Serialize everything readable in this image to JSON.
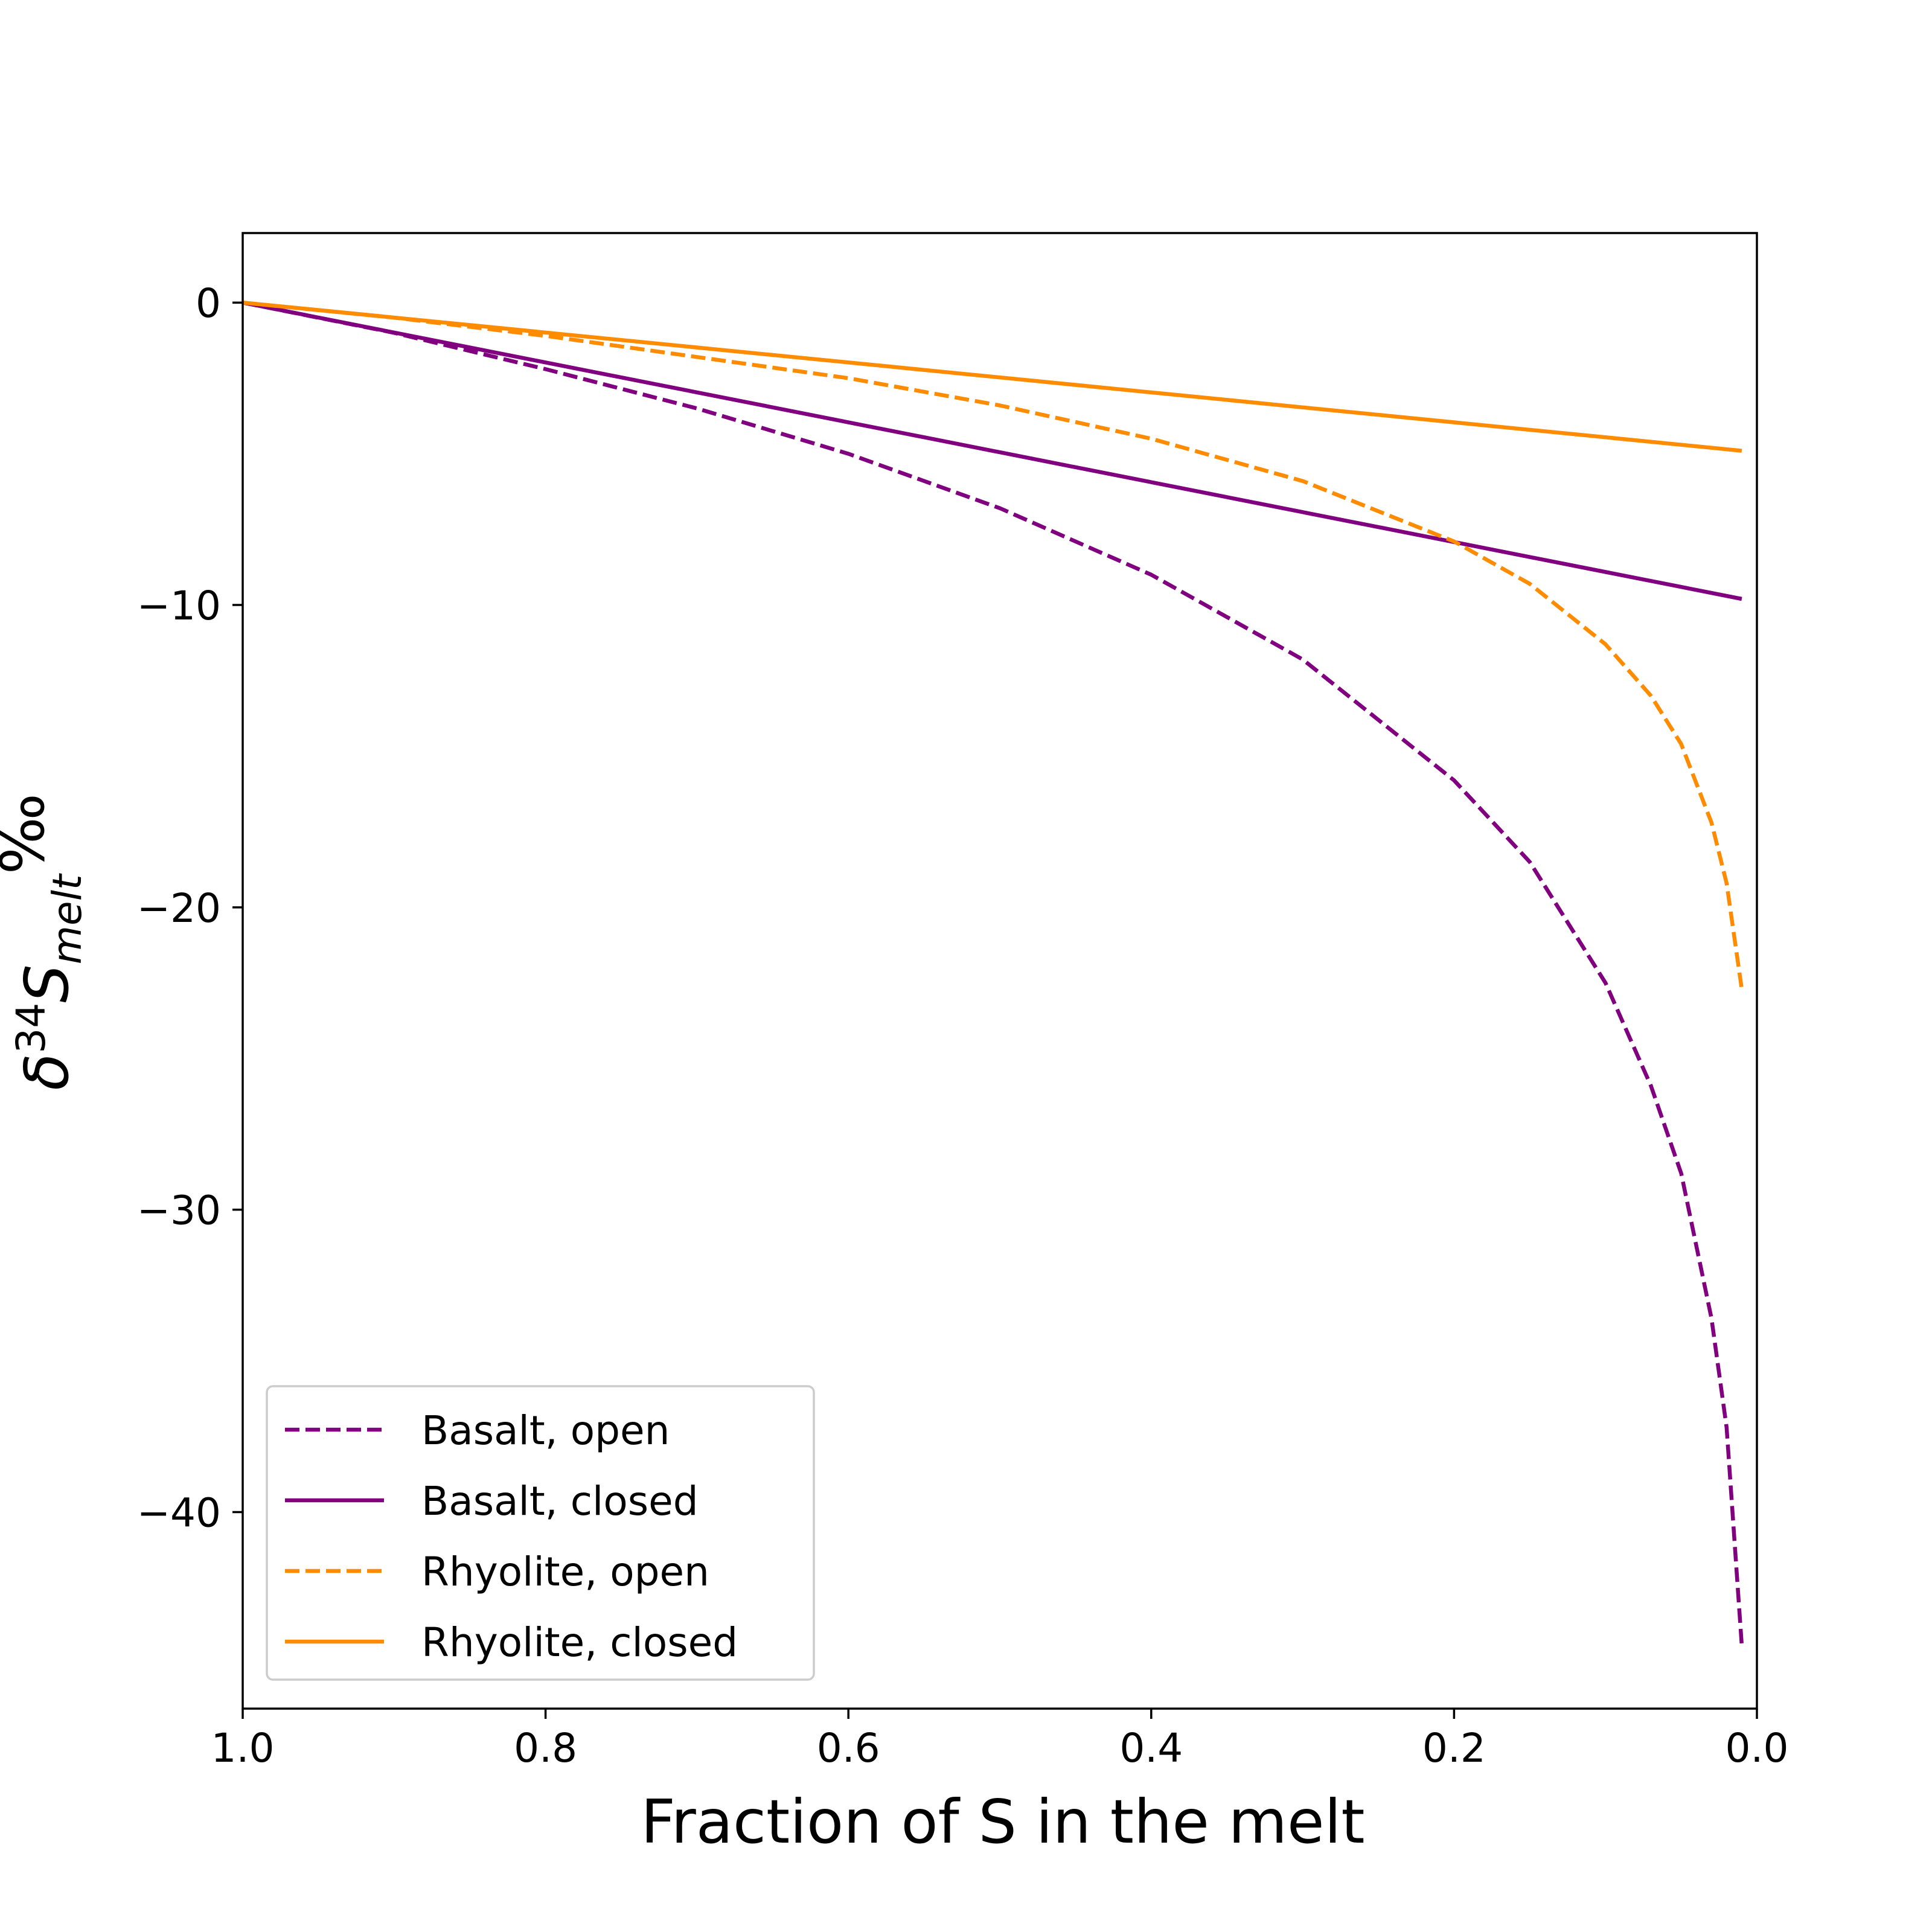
{
  "chart_data": {
    "type": "line",
    "title": "",
    "xlabel": "Fraction of S in the melt",
    "ylabel": {
      "delta": "δ",
      "mass": "34",
      "element": "S",
      "subscript": "melt",
      "unit": "‰"
    },
    "xlim": [
      1.0,
      0.0
    ],
    "ylim": [
      -46.5,
      2.3
    ],
    "x_inverted": true,
    "x_ticks": [
      {
        "value": 1.0,
        "label": "1.0"
      },
      {
        "value": 0.8,
        "label": "0.8"
      },
      {
        "value": 0.6,
        "label": "0.6"
      },
      {
        "value": 0.4,
        "label": "0.4"
      },
      {
        "value": 0.2,
        "label": "0.2"
      },
      {
        "value": 0.0,
        "label": "0.0"
      }
    ],
    "y_ticks": [
      {
        "value": 0,
        "label": "0"
      },
      {
        "value": -10,
        "label": "−10"
      },
      {
        "value": -20,
        "label": "−20"
      },
      {
        "value": -30,
        "label": "−30"
      },
      {
        "value": -40,
        "label": "−40"
      }
    ],
    "grid": false,
    "legend_position": "lower-left",
    "series": [
      {
        "name": "Basalt, open",
        "color": "#800080",
        "dash": "dashed",
        "x": [
          1.0,
          0.9,
          0.8,
          0.7,
          0.6,
          0.5,
          0.4,
          0.3,
          0.2,
          0.15,
          0.1,
          0.07,
          0.05,
          0.03,
          0.02,
          0.01
        ],
        "y": [
          0,
          -1.0,
          -2.2,
          -3.5,
          -5.0,
          -6.8,
          -9.0,
          -11.8,
          -15.8,
          -18.5,
          -22.5,
          -25.9,
          -28.8,
          -33.6,
          -37.2,
          -44.4
        ]
      },
      {
        "name": "Basalt, closed",
        "color": "#800080",
        "dash": "solid",
        "x": [
          1.0,
          0.01
        ],
        "y": [
          0,
          -9.8
        ]
      },
      {
        "name": "Rhyolite, open",
        "color": "#ff8c00",
        "dash": "dashed",
        "x": [
          1.0,
          0.9,
          0.8,
          0.7,
          0.6,
          0.5,
          0.4,
          0.3,
          0.2,
          0.15,
          0.1,
          0.07,
          0.05,
          0.03,
          0.02,
          0.01
        ],
        "y": [
          0,
          -0.5,
          -1.1,
          -1.8,
          -2.5,
          -3.4,
          -4.5,
          -5.9,
          -7.9,
          -9.3,
          -11.3,
          -13.0,
          -14.6,
          -17.2,
          -19.2,
          -22.7
        ]
      },
      {
        "name": "Rhyolite, closed",
        "color": "#ff8c00",
        "dash": "solid",
        "x": [
          1.0,
          0.01
        ],
        "y": [
          0,
          -4.9
        ]
      }
    ]
  }
}
